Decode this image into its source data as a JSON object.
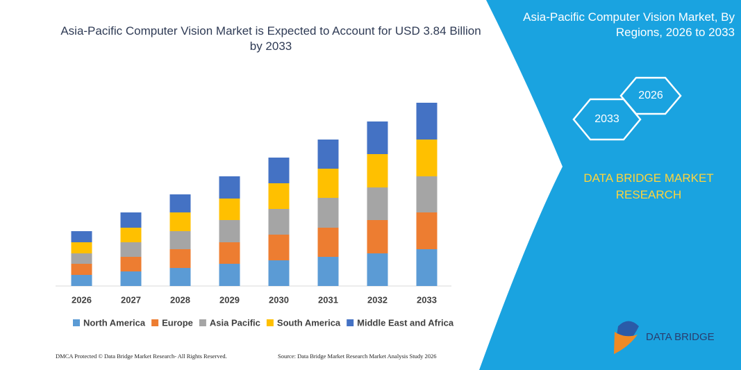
{
  "chart_data": {
    "type": "bar",
    "stacked": true,
    "title": "Asia-Pacific Computer Vision Market is Expected to Account for USD 3.84 Billion by 2033",
    "categories": [
      "2026",
      "2027",
      "2028",
      "2029",
      "2030",
      "2031",
      "2032",
      "2033"
    ],
    "series": [
      {
        "name": "North America",
        "color": "#5b9bd5",
        "values": [
          16,
          21,
          26,
          32,
          37,
          42,
          47,
          53
        ]
      },
      {
        "name": "Europe",
        "color": "#ed7d31",
        "values": [
          16,
          21,
          27,
          31,
          37,
          42,
          48,
          53
        ]
      },
      {
        "name": "Asia Pacific",
        "color": "#a5a5a5",
        "values": [
          15,
          21,
          26,
          32,
          37,
          43,
          47,
          52
        ]
      },
      {
        "name": "South America",
        "color": "#ffc000",
        "values": [
          16,
          21,
          27,
          31,
          37,
          42,
          48,
          53
        ]
      },
      {
        "name": "Middle East and Africa",
        "color": "#4472c4",
        "values": [
          16,
          22,
          26,
          32,
          37,
          42,
          47,
          53
        ]
      }
    ],
    "ylim": [
      0,
      300
    ]
  },
  "panel": {
    "title": "Asia-Pacific Computer Vision Market, By Regions, 2026 to 2033",
    "hexagons": [
      "2026",
      "2033"
    ],
    "brand": "DATA BRIDGE MARKET RESEARCH"
  },
  "logo": "DATA BRIDGE",
  "footer": {
    "left": "DMCA Protected © Data Bridge Market Research- All Rights Reserved.",
    "right": "Source: Data Bridge Market Research Market Analysis Study 2026"
  }
}
